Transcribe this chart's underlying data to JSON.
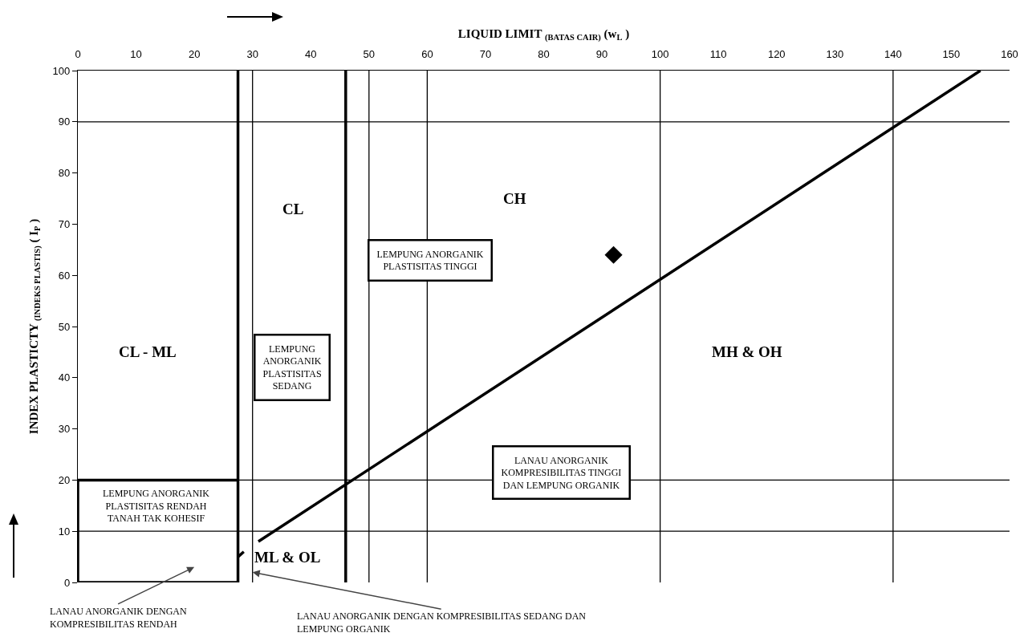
{
  "chart_data": {
    "type": "line",
    "xlabel": "LIQUID LIMIT $_{(BATAS CAIR)}$ (w$_{L}$ )",
    "ylabel": "INDEX PLASTICTY $_{(INDEKS PLASTIS)}$ ( I$_{P}$ )",
    "xlim": [
      0,
      160
    ],
    "xticks": [
      0,
      10,
      20,
      30,
      40,
      50,
      60,
      70,
      80,
      90,
      100,
      110,
      120,
      130,
      140,
      150,
      160
    ],
    "ylim": [
      0,
      100
    ],
    "yticks": [
      0,
      10,
      20,
      30,
      40,
      50,
      60,
      70,
      80,
      90,
      100
    ],
    "grid": false,
    "marker": "none",
    "line_style": "solid",
    "series": [
      {
        "color": "#000000",
        "x": [
          31,
          155
        ],
        "values": [
          8,
          100
        ]
      },
      {
        "color": "#000000",
        "x": [
          27.5,
          28.5
        ],
        "values": [
          5,
          6
        ]
      },
      {
        "color": "#000000",
        "x": [
          27.5,
          27.5
        ],
        "values": [
          0,
          100
        ]
      },
      {
        "color": "#000000",
        "x": [
          46,
          46
        ],
        "values": [
          0,
          100
        ]
      },
      {
        "color": "#000000",
        "x": [
          27.5,
          0,
          0,
          27.5
        ],
        "values": [
          0,
          0,
          20,
          20
        ]
      },
      {
        "type": "scatter",
        "marker": "diamond",
        "color": "#000000",
        "x": [
          92
        ],
        "values": [
          64
        ]
      }
    ],
    "ref_lines": [
      {
        "axis": "x",
        "value": 30,
        "color": "#000000"
      },
      {
        "axis": "x",
        "value": 50,
        "color": "#000000"
      },
      {
        "axis": "x",
        "value": 60,
        "color": "#000000"
      },
      {
        "axis": "x",
        "value": 100,
        "color": "#000000"
      },
      {
        "axis": "x",
        "value": 140,
        "color": "#000000"
      },
      {
        "axis": "y",
        "value": 10,
        "color": "#000000"
      },
      {
        "axis": "y",
        "value": 20,
        "color": "#000000"
      },
      {
        "axis": "y",
        "value": 90,
        "color": "#000000"
      }
    ],
    "annotations": [
      "CL",
      "CH",
      "CL - ML",
      "MH & OH",
      "ML & OL",
      "LEMPUNG ANORGANIK\nPLASTISITAS TINGGI",
      "LEMPUNG\nANORGANIK\nPLASTISITAS\nSEDANG",
      "LEMPUNG ANORGANIK\nPLASTISITAS RENDAH\nTANAH TAK KOHESIF",
      "LANAU ANORGANIK\nKOMPRESIBILITAS TINGGI\nDAN LEMPUNG ORGANIK",
      "LANAU ANORGANIK DENGAN\nKOMPRESIBILITAS RENDAH",
      {
        "text": "LANAU ANORGANIK DENGAN KOMPRESIBILITAS SEDANG DAN\nLEMPUNG ORGANIK",
        "x": 30,
        "y": 2
      }
    ]
  }
}
